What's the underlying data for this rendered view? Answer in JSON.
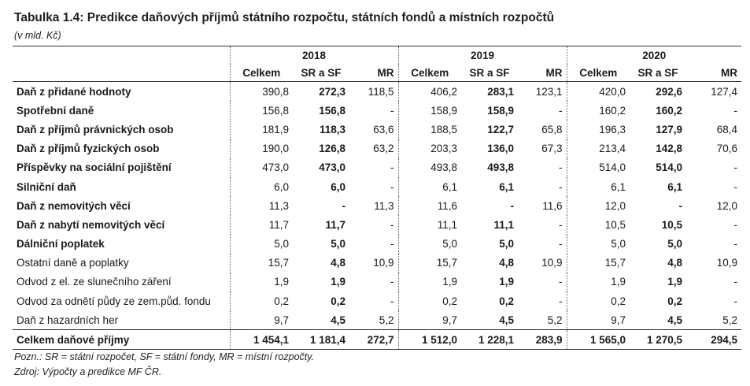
{
  "title": "Tabulka 1.4: Predikce daňových příjmů státního rozpočtu, státních fondů a místních rozpočtů",
  "unit": "(v mld. Kč)",
  "years": [
    "2018",
    "2019",
    "2020"
  ],
  "columns": [
    "Celkem",
    "SR a SF",
    "MR"
  ],
  "rows": [
    {
      "label": "Daň z přidané hodnoty",
      "bold": true,
      "v": [
        [
          "390,8",
          "272,3",
          "118,5"
        ],
        [
          "406,2",
          "283,1",
          "123,1"
        ],
        [
          "420,0",
          "292,6",
          "127,4"
        ]
      ]
    },
    {
      "label": "Spotřební daně",
      "bold": true,
      "v": [
        [
          "156,8",
          "156,8",
          "-"
        ],
        [
          "158,9",
          "158,9",
          "-"
        ],
        [
          "160,2",
          "160,2",
          "-"
        ]
      ]
    },
    {
      "label": "Daň z příjmů právnických osob",
      "bold": true,
      "v": [
        [
          "181,9",
          "118,3",
          "63,6"
        ],
        [
          "188,5",
          "122,7",
          "65,8"
        ],
        [
          "196,3",
          "127,9",
          "68,4"
        ]
      ]
    },
    {
      "label": "Daň z příjmů fyzických osob",
      "bold": true,
      "v": [
        [
          "190,0",
          "126,8",
          "63,2"
        ],
        [
          "203,3",
          "136,0",
          "67,3"
        ],
        [
          "213,4",
          "142,8",
          "70,6"
        ]
      ]
    },
    {
      "label": "Příspěvky na sociální pojištění",
      "bold": true,
      "v": [
        [
          "473,0",
          "473,0",
          "-"
        ],
        [
          "493,8",
          "493,8",
          "-"
        ],
        [
          "514,0",
          "514,0",
          "-"
        ]
      ]
    },
    {
      "label": "Silniční daň",
      "bold": true,
      "v": [
        [
          "6,0",
          "6,0",
          "-"
        ],
        [
          "6,1",
          "6,1",
          "-"
        ],
        [
          "6,1",
          "6,1",
          "-"
        ]
      ]
    },
    {
      "label": "Daň z nemovitých věcí",
      "bold": true,
      "v": [
        [
          "11,3",
          "-",
          "11,3"
        ],
        [
          "11,6",
          "-",
          "11,6"
        ],
        [
          "12,0",
          "-",
          "12,0"
        ]
      ]
    },
    {
      "label": "Daň z nabytí nemovitých věcí",
      "bold": true,
      "v": [
        [
          "11,7",
          "11,7",
          "-"
        ],
        [
          "11,1",
          "11,1",
          "-"
        ],
        [
          "10,5",
          "10,5",
          "-"
        ]
      ]
    },
    {
      "label": "Dálniční poplatek",
      "bold": true,
      "v": [
        [
          "5,0",
          "5,0",
          "-"
        ],
        [
          "5,0",
          "5,0",
          "-"
        ],
        [
          "5,0",
          "5,0",
          "-"
        ]
      ]
    },
    {
      "label": "Ostatní daně a poplatky",
      "bold": false,
      "v": [
        [
          "15,7",
          "4,8",
          "10,9"
        ],
        [
          "15,7",
          "4,8",
          "10,9"
        ],
        [
          "15,7",
          "4,8",
          "10,9"
        ]
      ]
    },
    {
      "label": "Odvod z el. ze slunečního záření",
      "bold": false,
      "v": [
        [
          "1,9",
          "1,9",
          "-"
        ],
        [
          "1,9",
          "1,9",
          "-"
        ],
        [
          "1,9",
          "1,9",
          "-"
        ]
      ]
    },
    {
      "label": "Odvod za odnětí půdy ze zem.půd. fondu",
      "bold": false,
      "v": [
        [
          "0,2",
          "0,2",
          "-"
        ],
        [
          "0,2",
          "0,2",
          "-"
        ],
        [
          "0,2",
          "0,2",
          "-"
        ]
      ]
    },
    {
      "label": "Daň z hazardních her",
      "bold": false,
      "v": [
        [
          "9,7",
          "4,5",
          "5,2"
        ],
        [
          "9,7",
          "4,5",
          "5,2"
        ],
        [
          "9,7",
          "4,5",
          "5,2"
        ]
      ]
    }
  ],
  "total": {
    "label": "Celkem daňové příjmy",
    "v": [
      [
        "1 454,1",
        "1 181,4",
        "272,7"
      ],
      [
        "1 512,0",
        "1 228,1",
        "283,9"
      ],
      [
        "1 565,0",
        "1 270,5",
        "294,5"
      ]
    ]
  },
  "notes": [
    "Pozn.: SR = státní rozpočet, SF = státní fondy, MR = místní rozpočty.",
    "Zdroj: Výpočty a predikce MF ČR."
  ]
}
